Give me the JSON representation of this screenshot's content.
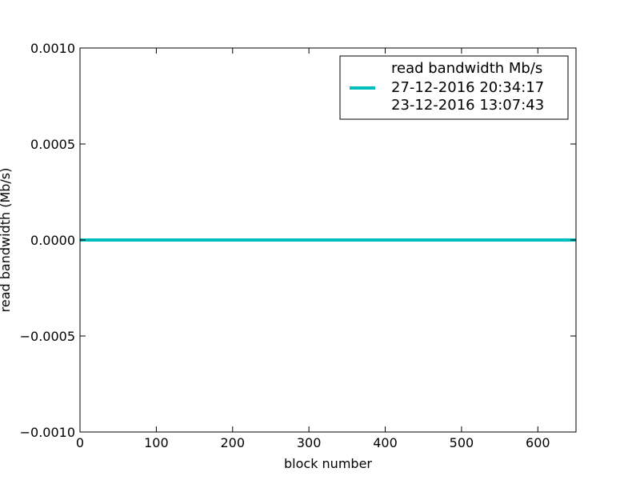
{
  "chart_data": {
    "type": "line",
    "title": "",
    "xlabel": "block number",
    "ylabel": "read bandwidth (Mb/s)",
    "xlim": [
      0,
      650
    ],
    "ylim": [
      -0.001,
      0.001
    ],
    "x_ticks": [
      0,
      100,
      200,
      300,
      400,
      500,
      600
    ],
    "x_tick_labels": [
      "0",
      "100",
      "200",
      "300",
      "400",
      "500",
      "600"
    ],
    "y_ticks": [
      0.001,
      0.0005,
      0,
      -0.0005,
      -0.001
    ],
    "y_tick_labels": [
      "0.0010",
      "0.0005",
      "0.0000",
      "−0.0005",
      "−0.0010"
    ],
    "grid": false,
    "legend_position": "top-right",
    "series": [
      {
        "name": "read bandwidth Mb/s\n27-12-2016 20:34:17\n23-12-2016 13:07:43",
        "color": "#00bfbf",
        "x": [
          0,
          650
        ],
        "y": [
          0,
          0
        ]
      }
    ],
    "legend": {
      "lines": [
        "read bandwidth Mb/s",
        "27-12-2016 20:34:17",
        "23-12-2016 13:07:43"
      ]
    }
  }
}
